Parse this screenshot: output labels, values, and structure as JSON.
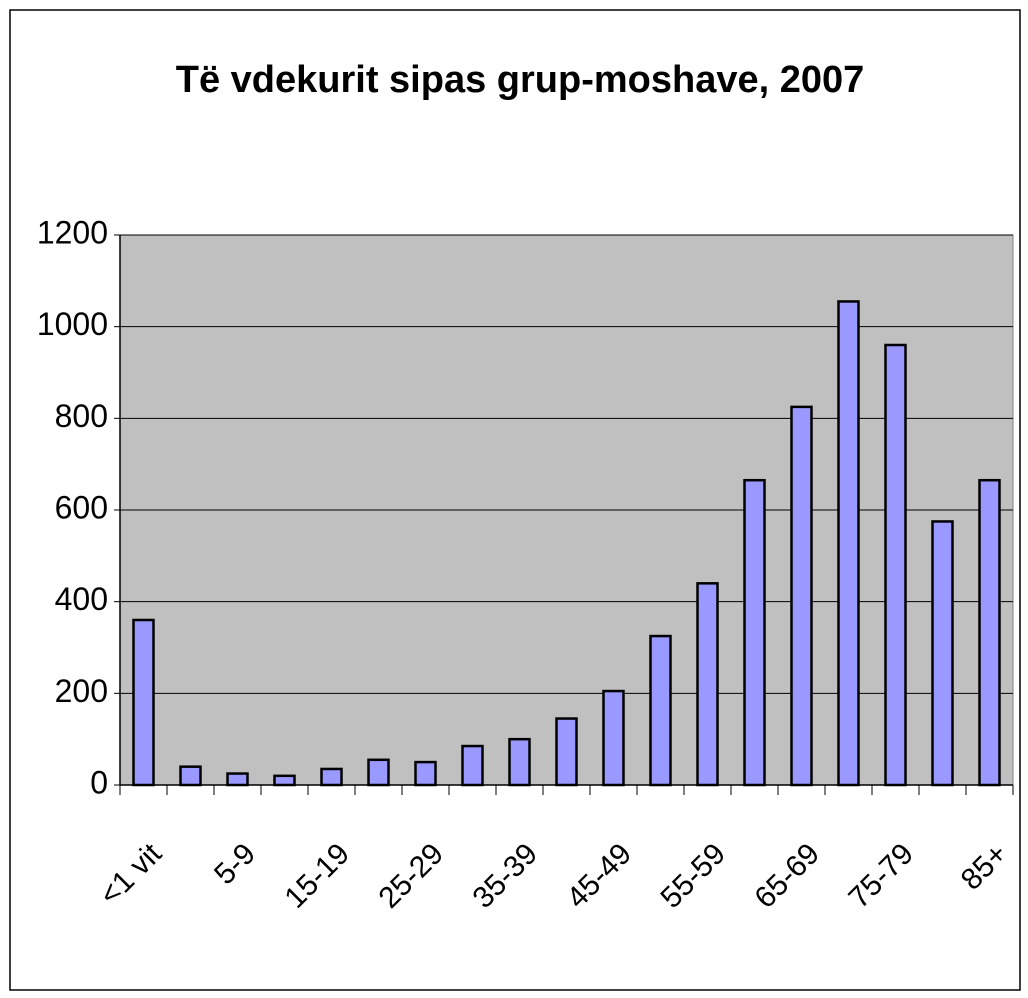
{
  "chart_data": {
    "type": "bar",
    "title": "Të vdekurit sipas grup-moshave, 2007",
    "categories": [
      "<1 vit",
      null,
      "5-9",
      null,
      "15-19",
      null,
      "25-29",
      null,
      "35-39",
      null,
      "45-49",
      null,
      "55-59",
      null,
      "65-69",
      null,
      "75-79",
      null,
      "85+"
    ],
    "values": [
      360,
      40,
      25,
      20,
      35,
      55,
      50,
      85,
      100,
      145,
      205,
      325,
      440,
      665,
      825,
      1055,
      960,
      575,
      665
    ],
    "color": "#9999ff",
    "ylim": [
      0,
      1200
    ],
    "yticks": [
      0,
      200,
      400,
      600,
      800,
      1000,
      1200
    ],
    "grid": true
  }
}
